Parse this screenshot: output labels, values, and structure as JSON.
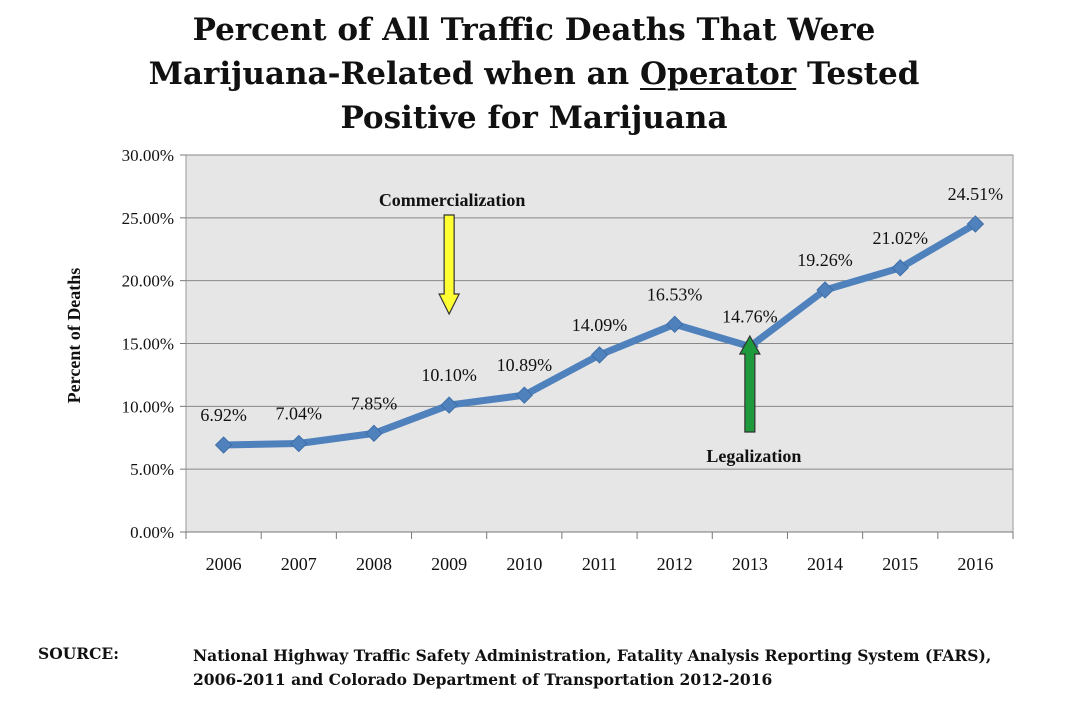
{
  "title": {
    "line1": "Percent of All Traffic Deaths That Were",
    "line2_pre": "Marijuana-Related when an ",
    "line2_underlined": "Operator",
    "line2_post": " Tested",
    "line3": "Positive for Marijuana"
  },
  "chart_data": {
    "type": "line",
    "title": "Percent of All Traffic Deaths That Were Marijuana-Related when an Operator Tested Positive for Marijuana",
    "xlabel": "",
    "ylabel": "Percent of Deaths",
    "categories": [
      "2006",
      "2007",
      "2008",
      "2009",
      "2010",
      "2011",
      "2012",
      "2013",
      "2014",
      "2015",
      "2016"
    ],
    "series": [
      {
        "name": "Percent of Deaths",
        "values": [
          6.92,
          7.04,
          7.85,
          10.1,
          10.89,
          14.09,
          16.53,
          14.76,
          19.26,
          21.02,
          24.51
        ],
        "labels": [
          "6.92%",
          "7.04%",
          "7.85%",
          "10.10%",
          "10.89%",
          "14.09%",
          "16.53%",
          "14.76%",
          "19.26%",
          "21.02%",
          "24.51%"
        ]
      }
    ],
    "ylim": [
      0,
      30
    ],
    "yticks": [
      0,
      5,
      10,
      15,
      20,
      25,
      30
    ],
    "ytick_labels": [
      "0.00%",
      "5.00%",
      "10.00%",
      "15.00%",
      "20.00%",
      "25.00%",
      "30.00%"
    ],
    "grid": true,
    "annotations": [
      {
        "text": "Commercialization",
        "category": "2009",
        "arrow": "down",
        "color": "#FFFF33"
      },
      {
        "text": "Legalization",
        "category": "2013",
        "arrow": "up",
        "color": "#1E9A3C"
      }
    ]
  },
  "colors": {
    "line": "#4F81BD",
    "plot_bg": "#E6E6E6",
    "grid": "#888888"
  },
  "source": {
    "label": "SOURCE:",
    "line1": "National Highway Traffic Safety Administration, Fatality Analysis Reporting System (FARS),",
    "line2": "2006-2011 and Colorado Department of Transportation 2012-2016"
  }
}
